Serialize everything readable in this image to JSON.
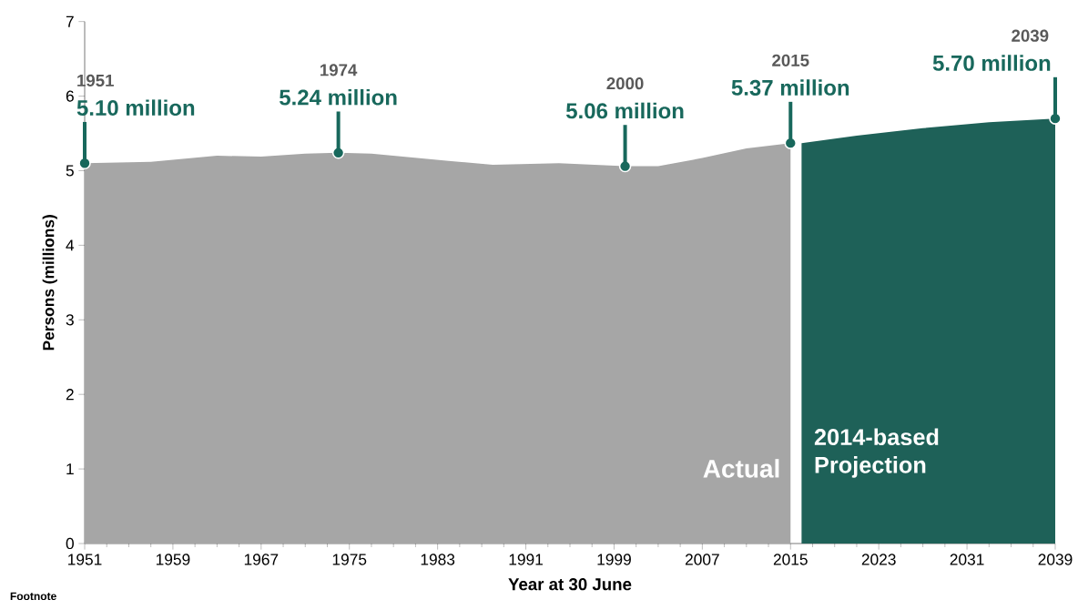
{
  "chart_data": {
    "type": "area",
    "xlabel": "Year at 30 June",
    "ylabel": "Persons (millions)",
    "series": [
      {
        "name": "Actual",
        "color": "#a6a6a6",
        "x": [
          1951,
          1957,
          1963,
          1967,
          1971,
          1974,
          1977,
          1984,
          1988,
          1994,
          2000,
          2003,
          2007,
          2011,
          2015
        ],
        "values": [
          5.1,
          5.12,
          5.2,
          5.19,
          5.23,
          5.24,
          5.23,
          5.13,
          5.08,
          5.1,
          5.06,
          5.06,
          5.17,
          5.3,
          5.37
        ]
      },
      {
        "name": "2014-based Projection",
        "color": "#1e6158",
        "x": [
          2016,
          2021,
          2027,
          2033,
          2039
        ],
        "values": [
          5.37,
          5.47,
          5.57,
          5.65,
          5.7
        ]
      }
    ],
    "xlim": [
      1951,
      2039
    ],
    "xticks": [
      1951,
      1959,
      1967,
      1975,
      1983,
      1991,
      1999,
      2007,
      2015,
      2023,
      2031,
      2039
    ],
    "ylim": [
      0,
      7
    ],
    "yticks": [
      0,
      1,
      2,
      3,
      4,
      5,
      6,
      7
    ],
    "grid": false,
    "legend": false,
    "annotations": [
      "1951",
      {
        "text": "5.10 million",
        "x": 1951,
        "y": 5.1
      },
      "1974",
      {
        "text": "5.24 million",
        "x": 1974,
        "y": 5.24
      },
      "2000",
      {
        "text": "5.06 million",
        "x": 2000,
        "y": 5.06
      },
      "2015",
      {
        "text": "5.37 million",
        "x": 2015,
        "y": 5.37
      },
      "2039",
      {
        "text": "5.70 million",
        "x": 2039,
        "y": 5.7
      },
      "Footnote"
    ]
  }
}
